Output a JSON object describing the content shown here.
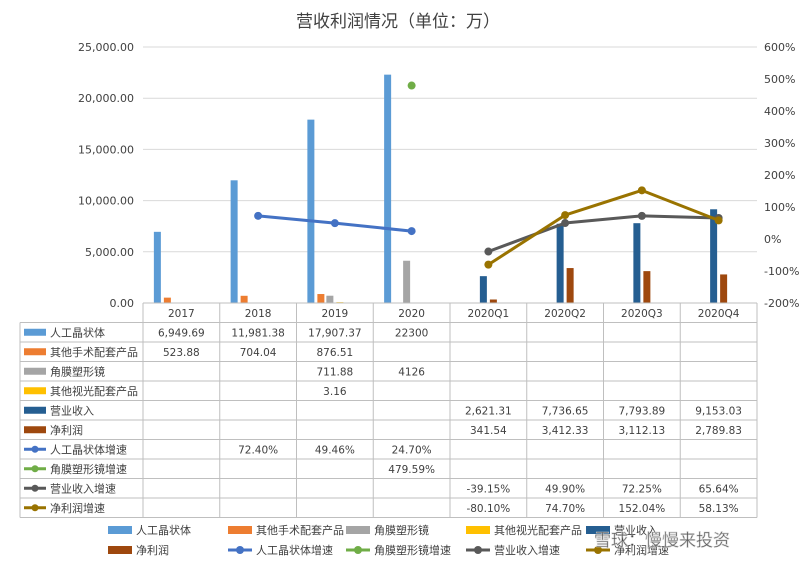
{
  "chart_data": {
    "type": "bar",
    "title": "营收利润情况（单位：万）",
    "categories": [
      "2017",
      "2018",
      "2019",
      "2020",
      "2020Q1",
      "2020Q2",
      "2020Q3",
      "2020Q4"
    ],
    "y_left": {
      "ylim": [
        0,
        25000
      ],
      "ticks": [
        "0.00",
        "5,000.00",
        "10,000.00",
        "15,000.00",
        "20,000.00",
        "25,000.00"
      ]
    },
    "y_right": {
      "ylim": [
        -200,
        600
      ],
      "ticks": [
        "-200%",
        "-100%",
        "0%",
        "100%",
        "200%",
        "300%",
        "400%",
        "500%",
        "600%"
      ]
    },
    "bar_series": [
      {
        "name": "人工晶状体",
        "color": "#5B9BD5",
        "values": [
          6949.69,
          11981.38,
          17907.37,
          22300,
          null,
          null,
          null,
          null
        ],
        "labels": [
          "6,949.69",
          "11,981.38",
          "17,907.37",
          "22300",
          "",
          "",
          "",
          ""
        ]
      },
      {
        "name": "其他手术配套产品",
        "color": "#ED7D31",
        "values": [
          523.88,
          704.04,
          876.51,
          null,
          null,
          null,
          null,
          null
        ],
        "labels": [
          "523.88",
          "704.04",
          "876.51",
          "",
          "",
          "",
          "",
          ""
        ]
      },
      {
        "name": "角膜塑形镜",
        "color": "#A5A5A5",
        "values": [
          null,
          null,
          711.88,
          4126,
          null,
          null,
          null,
          null
        ],
        "labels": [
          "",
          "",
          "711.88",
          "4126",
          "",
          "",
          "",
          ""
        ]
      },
      {
        "name": "其他视光配套产品",
        "color": "#FFC000",
        "values": [
          null,
          null,
          3.16,
          null,
          null,
          null,
          null,
          null
        ],
        "labels": [
          "",
          "",
          "3.16",
          "",
          "",
          "",
          "",
          ""
        ]
      },
      {
        "name": "营业收入",
        "color": "#255E91",
        "values": [
          null,
          null,
          null,
          null,
          2621.31,
          7736.65,
          7793.89,
          9153.03
        ],
        "labels": [
          "",
          "",
          "",
          "",
          "2,621.31",
          "7,736.65",
          "7,793.89",
          "9,153.03"
        ]
      },
      {
        "name": "净利润",
        "color": "#9E480E",
        "values": [
          null,
          null,
          null,
          null,
          341.54,
          3412.33,
          3112.13,
          2789.83
        ],
        "labels": [
          "",
          "",
          "",
          "",
          "341.54",
          "3,412.33",
          "3,112.13",
          "2,789.83"
        ]
      }
    ],
    "line_series": [
      {
        "name": "人工晶状体增速",
        "color": "#4472C4",
        "values": [
          null,
          72.4,
          49.46,
          24.7,
          null,
          null,
          null,
          null
        ],
        "labels": [
          "",
          "72.40%",
          "49.46%",
          "24.70%",
          "",
          "",
          "",
          ""
        ]
      },
      {
        "name": "角膜塑形镜增速",
        "color": "#70AD47",
        "values": [
          null,
          null,
          null,
          479.59,
          null,
          null,
          null,
          null
        ],
        "labels": [
          "",
          "",
          "",
          "479.59%",
          "",
          "",
          "",
          ""
        ]
      },
      {
        "name": "营业收入增速",
        "color": "#595959",
        "values": [
          null,
          null,
          null,
          null,
          -39.15,
          49.9,
          72.25,
          65.64
        ],
        "labels": [
          "",
          "",
          "",
          "",
          "-39.15%",
          "49.90%",
          "72.25%",
          "65.64%"
        ]
      },
      {
        "name": "净利润增速",
        "color": "#997300",
        "values": [
          null,
          null,
          null,
          null,
          -80.1,
          74.7,
          152.04,
          58.13
        ],
        "labels": [
          "",
          "",
          "",
          "",
          "-80.10%",
          "74.70%",
          "152.04%",
          "58.13%"
        ]
      }
    ],
    "legend_position": "bottom",
    "data_table": true
  },
  "watermark": "雪球：慢慢来投资"
}
